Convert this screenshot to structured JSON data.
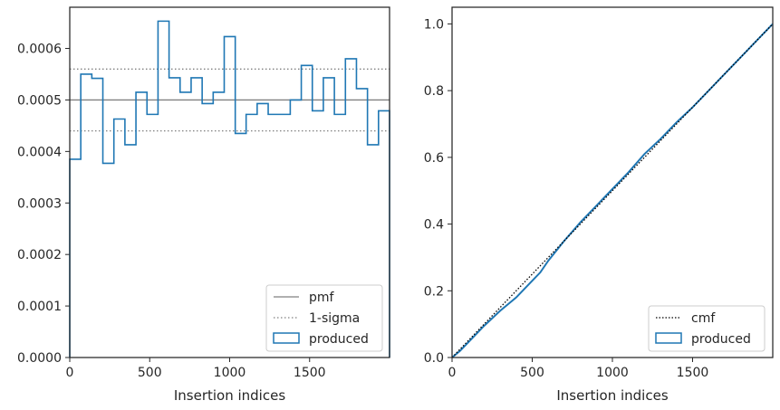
{
  "chart_data": [
    {
      "type": "histogram",
      "xlabel": "Insertion indices",
      "ylabel": "",
      "xlim": [
        0,
        2000
      ],
      "ylim": [
        0,
        0.00068
      ],
      "xticks": [
        0,
        500,
        1000,
        1500
      ],
      "xtick_labels": [
        "0",
        "500",
        "1000",
        "1500"
      ],
      "yticks": [
        0,
        0.0001,
        0.0002,
        0.0003,
        0.0004,
        0.0005,
        0.0006
      ],
      "ytick_labels": [
        "0.0000",
        "0.0001",
        "0.0002",
        "0.0003",
        "0.0004",
        "0.0005",
        "0.0006"
      ],
      "pmf": 0.0005,
      "sigma_lower": 0.00044,
      "sigma_upper": 0.00056,
      "bin_edges": [
        0,
        69,
        138,
        207,
        276,
        345,
        414,
        483,
        552,
        621,
        690,
        759,
        828,
        897,
        966,
        1035,
        1103,
        1172,
        1241,
        1310,
        1379,
        1448,
        1517,
        1586,
        1655,
        1724,
        1793,
        1862,
        1931,
        2000
      ],
      "values": [
        0.000385,
        0.00055,
        0.000542,
        0.000377,
        0.000463,
        0.000413,
        0.000515,
        0.000472,
        0.000653,
        0.000543,
        0.000515,
        0.000543,
        0.000493,
        0.000515,
        0.000623,
        0.000435,
        0.000472,
        0.000493,
        0.000472,
        0.000472,
        0.0005,
        0.000567,
        0.000479,
        0.000543,
        0.000472,
        0.00058,
        0.000522,
        0.000413,
        0.000479
      ],
      "legend": {
        "position": "lower-right",
        "entries": [
          {
            "label": "pmf",
            "style": "solid-line"
          },
          {
            "label": "1-sigma",
            "style": "dotted-line"
          },
          {
            "label": "produced",
            "style": "step-box"
          }
        ]
      },
      "grid": false
    },
    {
      "type": "line",
      "xlabel": "Insertion indices",
      "ylabel": "",
      "xlim": [
        0,
        2000
      ],
      "ylim": [
        0,
        1.05
      ],
      "xticks": [
        0,
        500,
        1000,
        1500
      ],
      "xtick_labels": [
        "0",
        "500",
        "1000",
        "1500"
      ],
      "yticks": [
        0,
        0.2,
        0.4,
        0.6,
        0.8,
        1.0
      ],
      "ytick_labels": [
        "0.0",
        "0.2",
        "0.4",
        "0.6",
        "0.8",
        "1.0"
      ],
      "series": [
        {
          "name": "cmf",
          "x": [
            0,
            2000
          ],
          "y": [
            0,
            1.0
          ],
          "style": "dotted"
        },
        {
          "name": "produced",
          "x": [
            0,
            50,
            100,
            200,
            300,
            400,
            500,
            550,
            600,
            700,
            800,
            900,
            1000,
            1100,
            1200,
            1300,
            1400,
            1500,
            1600,
            1700,
            1800,
            1900,
            2000
          ],
          "y": [
            0,
            0.02,
            0.045,
            0.095,
            0.14,
            0.18,
            0.23,
            0.255,
            0.29,
            0.35,
            0.405,
            0.455,
            0.505,
            0.555,
            0.61,
            0.655,
            0.705,
            0.75,
            0.8,
            0.85,
            0.9,
            0.95,
            1.0
          ],
          "style": "solid"
        }
      ],
      "legend": {
        "position": "lower-right",
        "entries": [
          {
            "label": "cmf",
            "style": "dotted-line"
          },
          {
            "label": "produced",
            "style": "step-box"
          }
        ]
      },
      "grid": false
    }
  ],
  "colors": {
    "produced": "#1f77b4",
    "pmf": "#808080",
    "sigma": "#808080",
    "cmf": "#000000",
    "axes": "#262626",
    "legend_border": "#cccccc"
  }
}
